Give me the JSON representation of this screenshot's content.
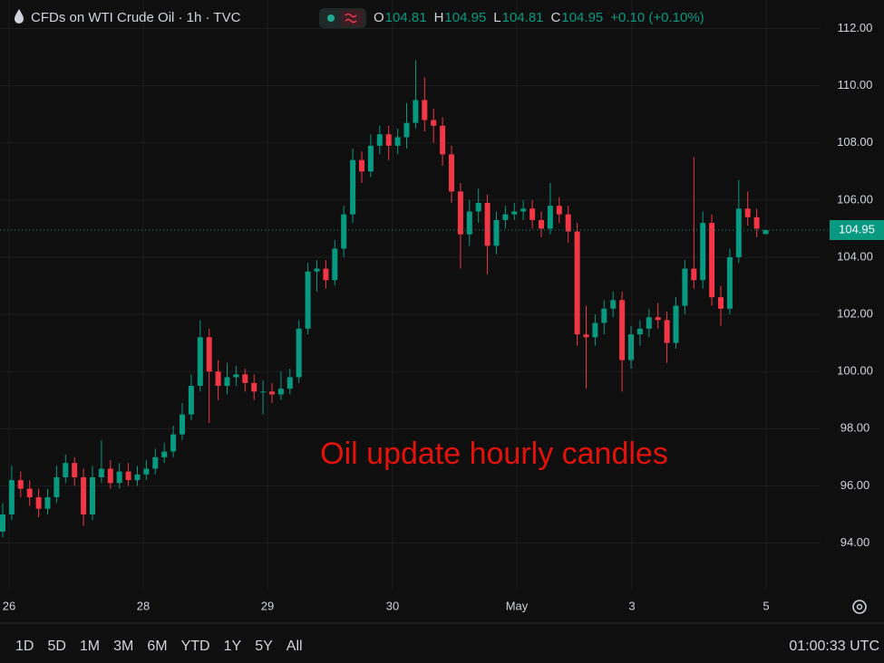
{
  "chart_data": {
    "type": "candlestick",
    "title": "CFDs on WTI Crude Oil · 1h · TVC",
    "ohlc_labels": [
      "O",
      "H",
      "L",
      "C"
    ],
    "change": "+0.10 (+0.10%)",
    "annotation": "Oil update hourly candles",
    "up_color": "#089981",
    "down_color": "#f23645",
    "annotation_color": "#e3120b",
    "grid": true,
    "ylim": [
      92.4,
      113.0
    ],
    "yticks": [
      {
        "value": 94,
        "label": "94.00"
      },
      {
        "value": 96,
        "label": "96.00"
      },
      {
        "value": 98,
        "label": "98.00"
      },
      {
        "value": 100,
        "label": "100.00"
      },
      {
        "value": 102,
        "label": "102.00"
      },
      {
        "value": 104,
        "label": "104.00"
      },
      {
        "value": 106,
        "label": "106.00"
      },
      {
        "value": 108,
        "label": "108.00"
      },
      {
        "value": 110,
        "label": "110.00"
      },
      {
        "value": 112,
        "label": "112.00"
      }
    ],
    "xtick_labels": [
      "26",
      "28",
      "29",
      "30",
      "May",
      "3",
      "5"
    ],
    "open": [
      94.4,
      95.0,
      96.2,
      95.9,
      95.6,
      95.2,
      95.6,
      96.3,
      96.8,
      96.3,
      95.0,
      96.3,
      96.6,
      96.1,
      96.5,
      96.2,
      96.4,
      96.6,
      97.0,
      97.2,
      97.8,
      98.5,
      99.5,
      101.2,
      100.0,
      99.5,
      99.8,
      99.9,
      99.6,
      99.3,
      99.3,
      99.2,
      99.4,
      99.8,
      101.5,
      103.5,
      103.6,
      103.2,
      104.3,
      105.5,
      107.4,
      107.0,
      107.9,
      108.3,
      107.9,
      108.2,
      108.7,
      109.5,
      108.8,
      108.6,
      107.6,
      106.3,
      104.8,
      105.6,
      105.9,
      104.4,
      105.3,
      105.5,
      105.6,
      105.7,
      105.3,
      105.0,
      105.8,
      105.5,
      104.9,
      101.3,
      101.2,
      101.7,
      102.2,
      102.5,
      100.4,
      101.3,
      101.5,
      101.9,
      101.8,
      101.0,
      102.3,
      103.6,
      103.2,
      105.2,
      102.6,
      102.2,
      104.0,
      105.7,
      105.4,
      104.81
    ],
    "high": [
      95.4,
      96.7,
      96.5,
      96.2,
      95.9,
      95.9,
      96.7,
      97.1,
      97.0,
      96.6,
      96.7,
      97.6,
      96.9,
      96.8,
      96.8,
      96.7,
      96.9,
      97.3,
      97.5,
      98.1,
      98.9,
      99.9,
      101.8,
      101.5,
      100.4,
      100.3,
      100.2,
      100.1,
      99.9,
      99.7,
      99.6,
      100.0,
      100.1,
      101.8,
      103.8,
      103.9,
      103.9,
      104.6,
      105.8,
      107.8,
      107.7,
      108.3,
      108.6,
      108.6,
      108.5,
      109.4,
      110.9,
      110.3,
      109.2,
      108.9,
      107.9,
      106.6,
      106.0,
      106.4,
      106.2,
      105.6,
      105.8,
      105.9,
      106.0,
      106.0,
      105.6,
      106.6,
      106.1,
      105.8,
      105.2,
      102.3,
      102.0,
      102.5,
      102.8,
      102.8,
      101.6,
      101.8,
      102.2,
      102.4,
      102.1,
      102.6,
      103.9,
      107.5,
      105.6,
      105.5,
      103.0,
      104.3,
      106.7,
      106.3,
      105.7,
      104.95
    ],
    "low": [
      94.2,
      94.8,
      95.6,
      95.3,
      94.9,
      95.0,
      95.4,
      96.1,
      96.0,
      94.6,
      94.8,
      96.1,
      95.9,
      95.9,
      96.0,
      96.0,
      96.2,
      96.4,
      96.8,
      97.0,
      97.6,
      98.3,
      99.3,
      98.2,
      99.0,
      99.2,
      99.5,
      99.3,
      99.0,
      98.5,
      98.9,
      99.0,
      99.2,
      99.6,
      101.3,
      102.8,
      102.9,
      103.0,
      104.0,
      105.2,
      106.6,
      106.8,
      107.6,
      107.4,
      107.6,
      107.8,
      108.5,
      108.4,
      108.0,
      107.2,
      105.9,
      103.6,
      104.4,
      105.2,
      103.4,
      104.1,
      105.0,
      105.3,
      105.3,
      105.0,
      104.7,
      104.8,
      105.2,
      104.5,
      100.9,
      99.4,
      100.9,
      101.3,
      101.9,
      99.3,
      100.1,
      100.9,
      101.2,
      101.5,
      100.3,
      100.8,
      102.0,
      102.9,
      102.9,
      102.3,
      101.6,
      102.0,
      103.8,
      105.1,
      104.7,
      104.81
    ],
    "close": [
      95.0,
      96.2,
      95.9,
      95.6,
      95.2,
      95.6,
      96.3,
      96.8,
      96.3,
      95.0,
      96.3,
      96.6,
      96.1,
      96.5,
      96.2,
      96.4,
      96.6,
      97.0,
      97.2,
      97.8,
      98.5,
      99.5,
      101.2,
      100.0,
      99.5,
      99.8,
      99.9,
      99.6,
      99.3,
      99.3,
      99.2,
      99.4,
      99.8,
      101.5,
      103.5,
      103.6,
      103.2,
      104.3,
      105.5,
      107.4,
      107.0,
      107.9,
      108.3,
      107.9,
      108.2,
      108.7,
      109.5,
      108.8,
      108.6,
      107.6,
      106.3,
      104.8,
      105.6,
      105.9,
      104.4,
      105.3,
      105.5,
      105.6,
      105.7,
      105.3,
      105.0,
      105.8,
      105.5,
      104.9,
      101.3,
      101.2,
      101.7,
      102.2,
      102.5,
      100.4,
      101.3,
      101.5,
      101.9,
      101.8,
      101.0,
      102.3,
      103.6,
      103.2,
      105.2,
      102.6,
      102.2,
      104.0,
      105.7,
      105.4,
      105.0,
      104.95
    ]
  },
  "toolbar": {
    "ranges": [
      "1D",
      "5D",
      "1M",
      "3M",
      "6M",
      "YTD",
      "1Y",
      "5Y",
      "All"
    ],
    "time": "01:00:33 UTC"
  }
}
